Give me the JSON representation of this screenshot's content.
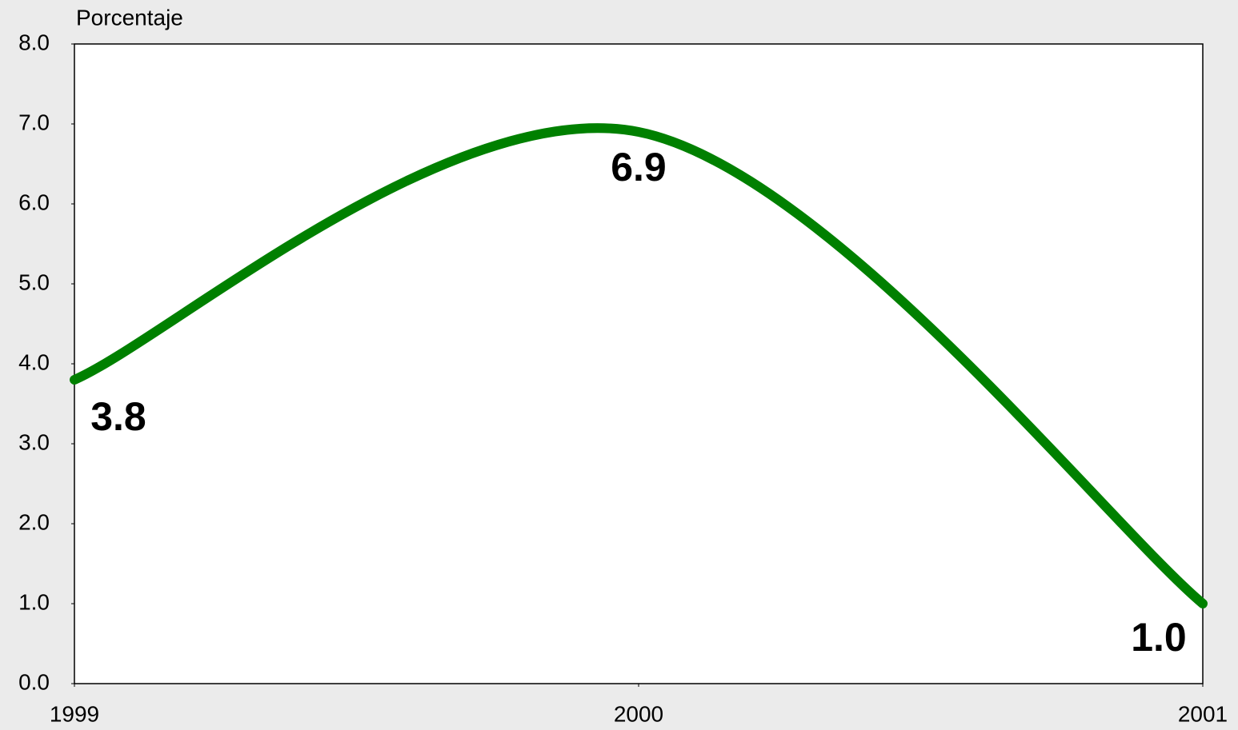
{
  "chart_data": {
    "type": "line",
    "y_label": "Porcentaje",
    "x": [
      1999,
      2000,
      2001
    ],
    "xlim": [
      1999,
      2001
    ],
    "xticks": [
      1999,
      2000,
      2001
    ],
    "series": [
      {
        "color": "#008000",
        "values": [
          3.8,
          6.9,
          1.0
        ],
        "value_labels": [
          "3.8",
          "6.9",
          "1.0"
        ]
      }
    ],
    "ylim": [
      0,
      8
    ],
    "yticks": [
      {
        "value": 0,
        "label": "0.0"
      },
      {
        "value": 1,
        "label": "1.0"
      },
      {
        "value": 2,
        "label": "2.0"
      },
      {
        "value": 3,
        "label": "3.0"
      },
      {
        "value": 4,
        "label": "4.0"
      },
      {
        "value": 5,
        "label": "5.0"
      },
      {
        "value": 6,
        "label": "6.0"
      },
      {
        "value": 7,
        "label": "7.0"
      },
      {
        "value": 8,
        "label": "8.0"
      }
    ],
    "smooth": true
  }
}
